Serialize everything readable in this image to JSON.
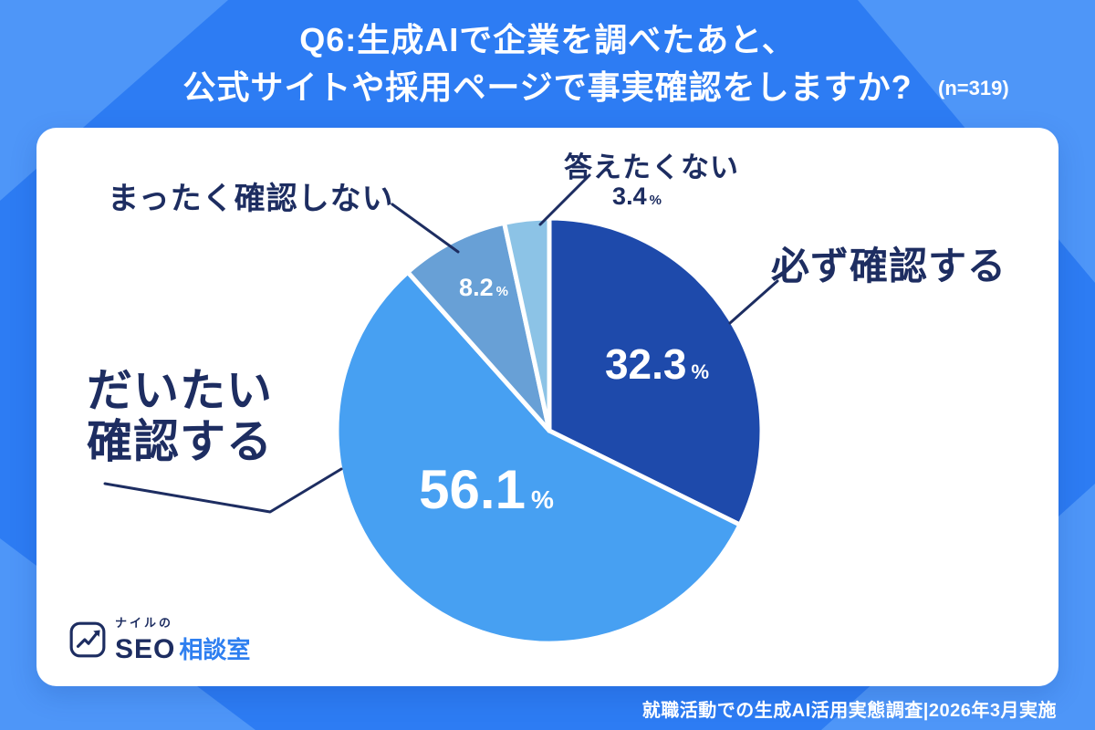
{
  "header": {
    "title_line1": "Q6:生成AIで企業を調べたあと、",
    "title_line2": "公式サイトや採用ページで事実確認をしますか?",
    "sample_size": "(n=319)"
  },
  "chart_data": {
    "type": "pie",
    "title": "Q6:生成AIで企業を調べたあと、公式サイトや採用ページで事実確認をしますか?",
    "sample_size_n": 319,
    "unit": "%",
    "start_angle": "12-oclock",
    "direction": "clockwise",
    "legend_position": "callout-labels",
    "segments": [
      {
        "label": "必ず確認する",
        "value": 32.3,
        "display": "32.3",
        "color": "#1e4aab"
      },
      {
        "label": "だいたい確認する",
        "value": 56.1,
        "display": "56.1",
        "color": "#47a0f2"
      },
      {
        "label": "まったく確認しない",
        "value": 8.2,
        "display": "8.2",
        "color": "#68a0d6"
      },
      {
        "label": "答えたくない",
        "value": 3.4,
        "display": "3.4",
        "color": "#8cc3e6"
      }
    ]
  },
  "units": {
    "percent": "%"
  },
  "logo": {
    "reading": "ナイルの",
    "brand_bold": "SEO",
    "brand_blue": "相談室"
  },
  "footer": {
    "credit": "就職活動での生成AI活用実態調査|2026年3月実施"
  }
}
